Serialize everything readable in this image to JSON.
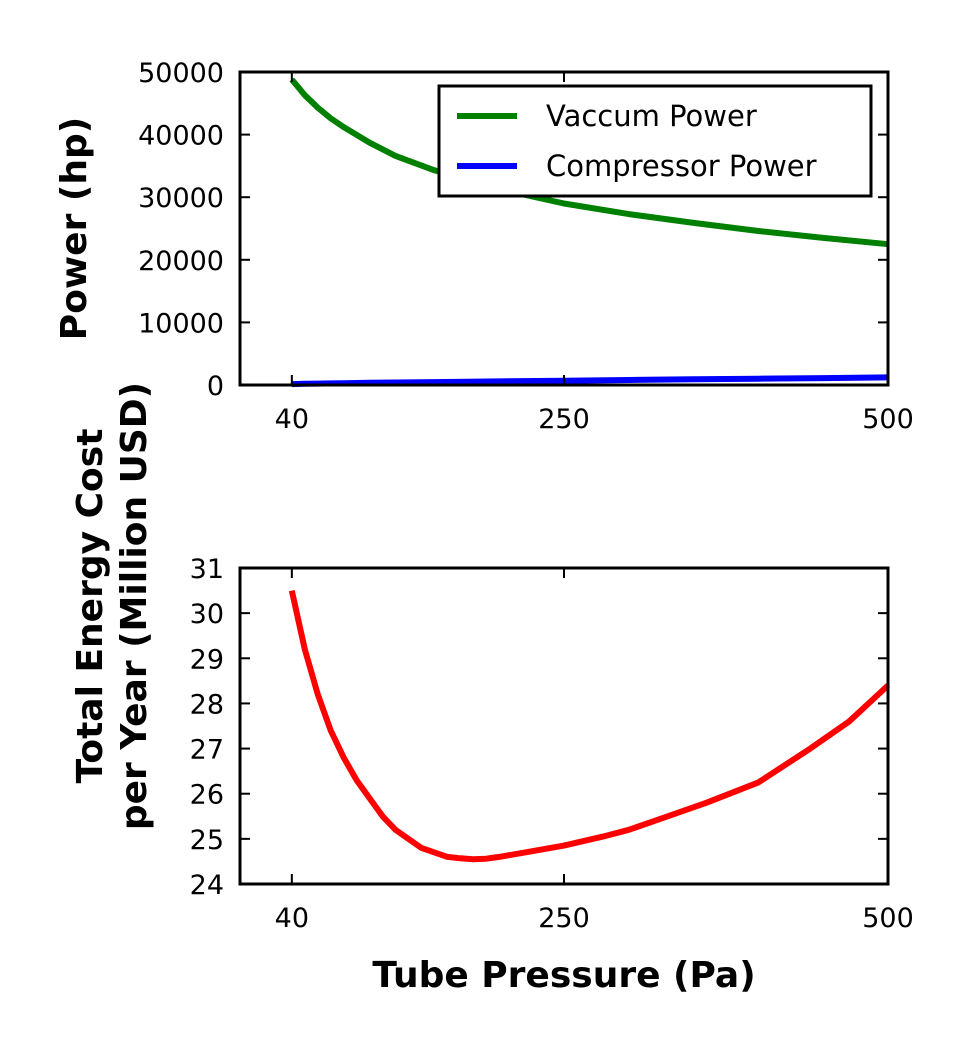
{
  "chart_data": [
    {
      "type": "line",
      "title": "",
      "xlabel": "",
      "ylabel": "Power (hp)",
      "xlim": [
        0,
        500
      ],
      "ylim": [
        0,
        50000
      ],
      "xticks": [
        40,
        250,
        500
      ],
      "yticks": [
        0,
        10000,
        20000,
        30000,
        40000,
        50000
      ],
      "grid": false,
      "legend": "top-right",
      "x": [
        40,
        50,
        60,
        70,
        80,
        100,
        120,
        150,
        200,
        250,
        300,
        350,
        400,
        450,
        500
      ],
      "series": [
        {
          "name": "Vaccum Power",
          "color": "#008000",
          "values": [
            48800,
            46300,
            44300,
            42600,
            41200,
            38700,
            36600,
            34300,
            31300,
            29000,
            27300,
            25900,
            24600,
            23500,
            22500
          ]
        },
        {
          "name": "Compressor Power",
          "color": "#0000ff",
          "values": [
            150,
            190,
            230,
            260,
            290,
            350,
            400,
            470,
            580,
            690,
            800,
            910,
            1010,
            1110,
            1220
          ]
        }
      ]
    },
    {
      "type": "line",
      "title": "",
      "xlabel": "Tube Pressure (Pa)",
      "ylabel": [
        "Total Energy Cost",
        "per Year (Million USD)"
      ],
      "xlim": [
        0,
        500
      ],
      "ylim": [
        24,
        31
      ],
      "xticks": [
        40,
        250,
        500
      ],
      "yticks": [
        24,
        25,
        26,
        27,
        28,
        29,
        30,
        31
      ],
      "grid": false,
      "x": [
        40,
        50,
        60,
        70,
        80,
        90,
        100,
        110,
        120,
        130,
        140,
        150,
        160,
        170,
        180,
        190,
        200,
        220,
        250,
        280,
        300,
        330,
        360,
        400,
        440,
        470,
        500
      ],
      "series": [
        {
          "name": "",
          "color": "#ff0000",
          "values": [
            30.5,
            29.2,
            28.2,
            27.4,
            26.8,
            26.3,
            25.9,
            25.5,
            25.2,
            25.0,
            24.8,
            24.7,
            24.6,
            24.57,
            24.55,
            24.56,
            24.6,
            24.7,
            24.85,
            25.05,
            25.2,
            25.5,
            25.8,
            26.25,
            27.0,
            27.6,
            28.4
          ]
        }
      ]
    }
  ]
}
